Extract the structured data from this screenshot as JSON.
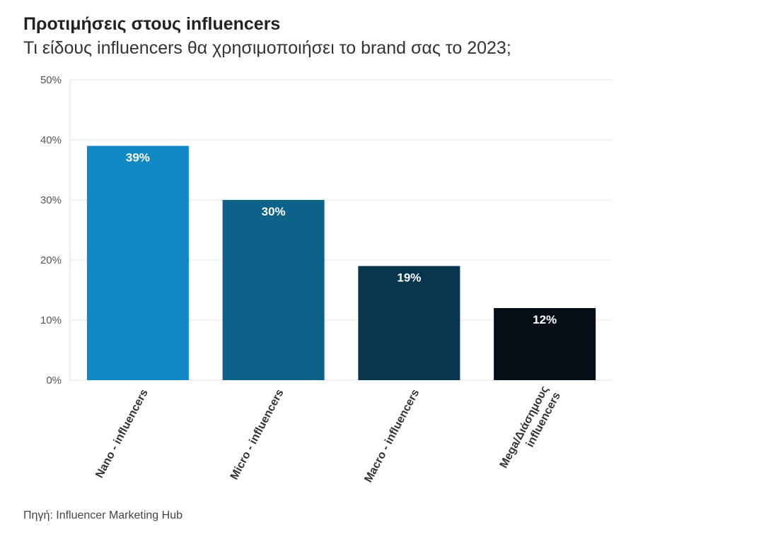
{
  "header": {
    "title": "Προτιμήσεις στους influencers",
    "subtitle": "Τι είδους influencers θα χρησιμοποιήσει το brand σας το 2023;"
  },
  "footer": {
    "source": "Πηγή: Influencer Marketing Hub"
  },
  "chart_data": {
    "type": "bar",
    "categories": [
      [
        "Nano - influencers"
      ],
      [
        "Micro - influencers"
      ],
      [
        "Macro - influencers"
      ],
      [
        "Mega/Διάσημους",
        "influencers"
      ]
    ],
    "values": [
      39,
      30,
      19,
      12
    ],
    "data_labels": [
      "39%",
      "30%",
      "19%",
      "12%"
    ],
    "colors": [
      "#1188c4",
      "#0d628a",
      "#07354d",
      "#040f15"
    ],
    "ylim": [
      0,
      50
    ],
    "yticks": [
      0,
      10,
      20,
      30,
      40,
      50
    ],
    "ytick_labels": [
      "0%",
      "10%",
      "20%",
      "30%",
      "40%",
      "50%"
    ],
    "grid": true,
    "gridline_color": "#e5e5e5",
    "xlabel": "",
    "ylabel": ""
  }
}
